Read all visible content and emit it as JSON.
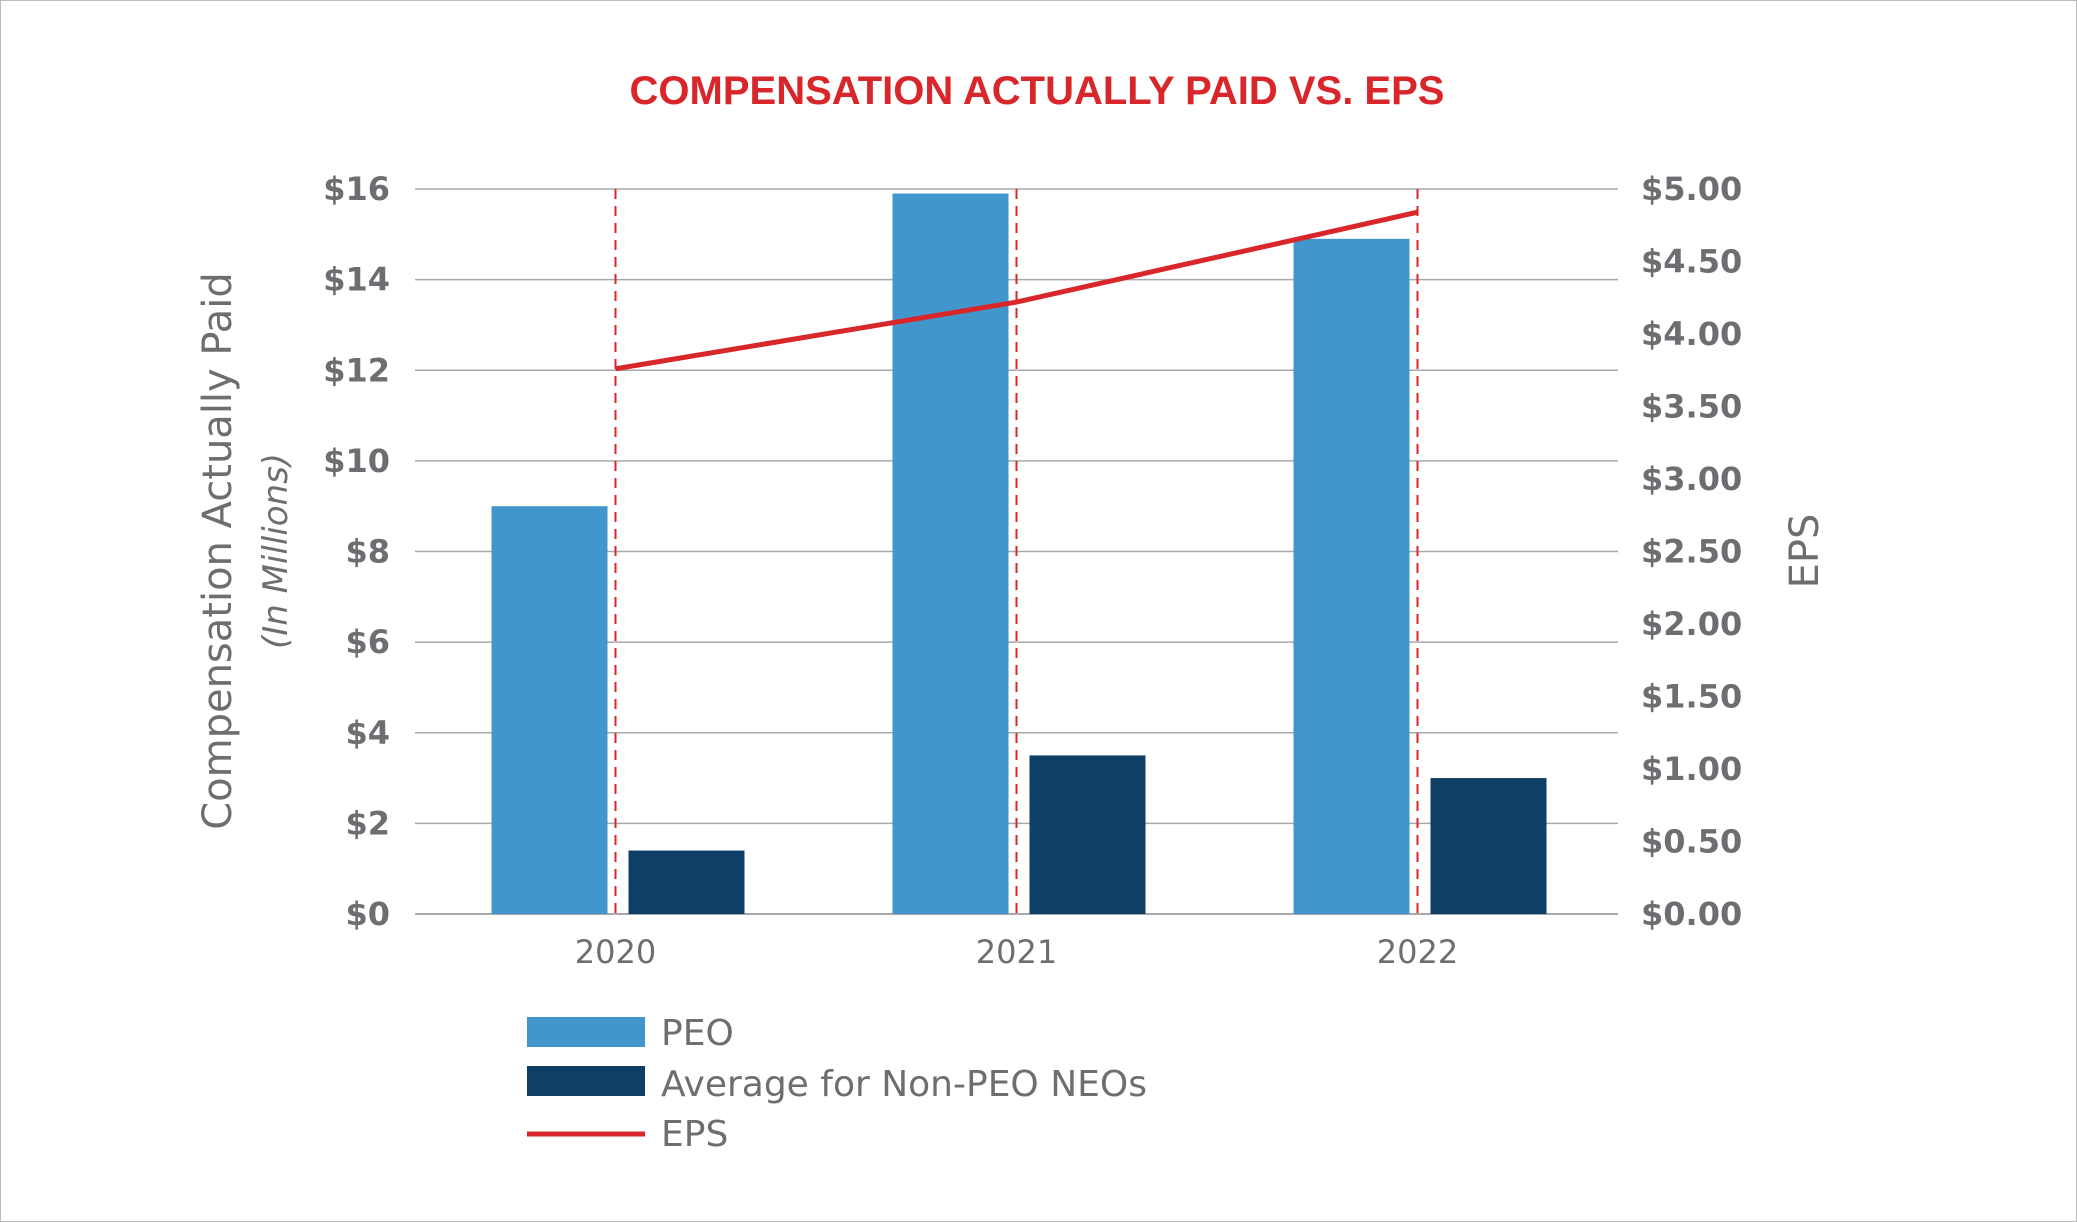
{
  "chart_data": {
    "type": "bar",
    "title": "COMPENSATION ACTUALLY PAID VS. EPS",
    "categories": [
      "2020",
      "2021",
      "2022"
    ],
    "series": [
      {
        "name": "PEO",
        "kind": "bar",
        "axis": "left",
        "color": "#4196cc",
        "values": [
          9.0,
          15.9,
          14.9
        ]
      },
      {
        "name": "Average for Non-PEO NEOs",
        "kind": "bar",
        "axis": "left",
        "color": "#0e3f66",
        "values": [
          1.4,
          3.5,
          3.0
        ]
      },
      {
        "name": "EPS",
        "kind": "line",
        "axis": "right",
        "color": "#d9262b",
        "values": [
          3.76,
          4.22,
          4.84
        ]
      }
    ],
    "ylabel": "Compensation Actually Paid",
    "ylabel_sub": "(In Millions)",
    "y2label": "EPS",
    "ylim": [
      0,
      16
    ],
    "y2lim": [
      0,
      5
    ],
    "yticks": [
      "$0",
      "$2",
      "$4",
      "$6",
      "$8",
      "$10",
      "$12",
      "$14",
      "$16"
    ],
    "y2ticks": [
      "$0.00",
      "$0.50",
      "$1.00",
      "$1.50",
      "$2.00",
      "$2.50",
      "$3.00",
      "$3.50",
      "$4.00",
      "$4.50",
      "$5.00"
    ],
    "grid": true,
    "legend_position": "bottom-left",
    "colors": {
      "title": "#d9262b",
      "text": "#6d6e71",
      "grid": "#a7a9ac",
      "divider": "#d9262b"
    }
  }
}
